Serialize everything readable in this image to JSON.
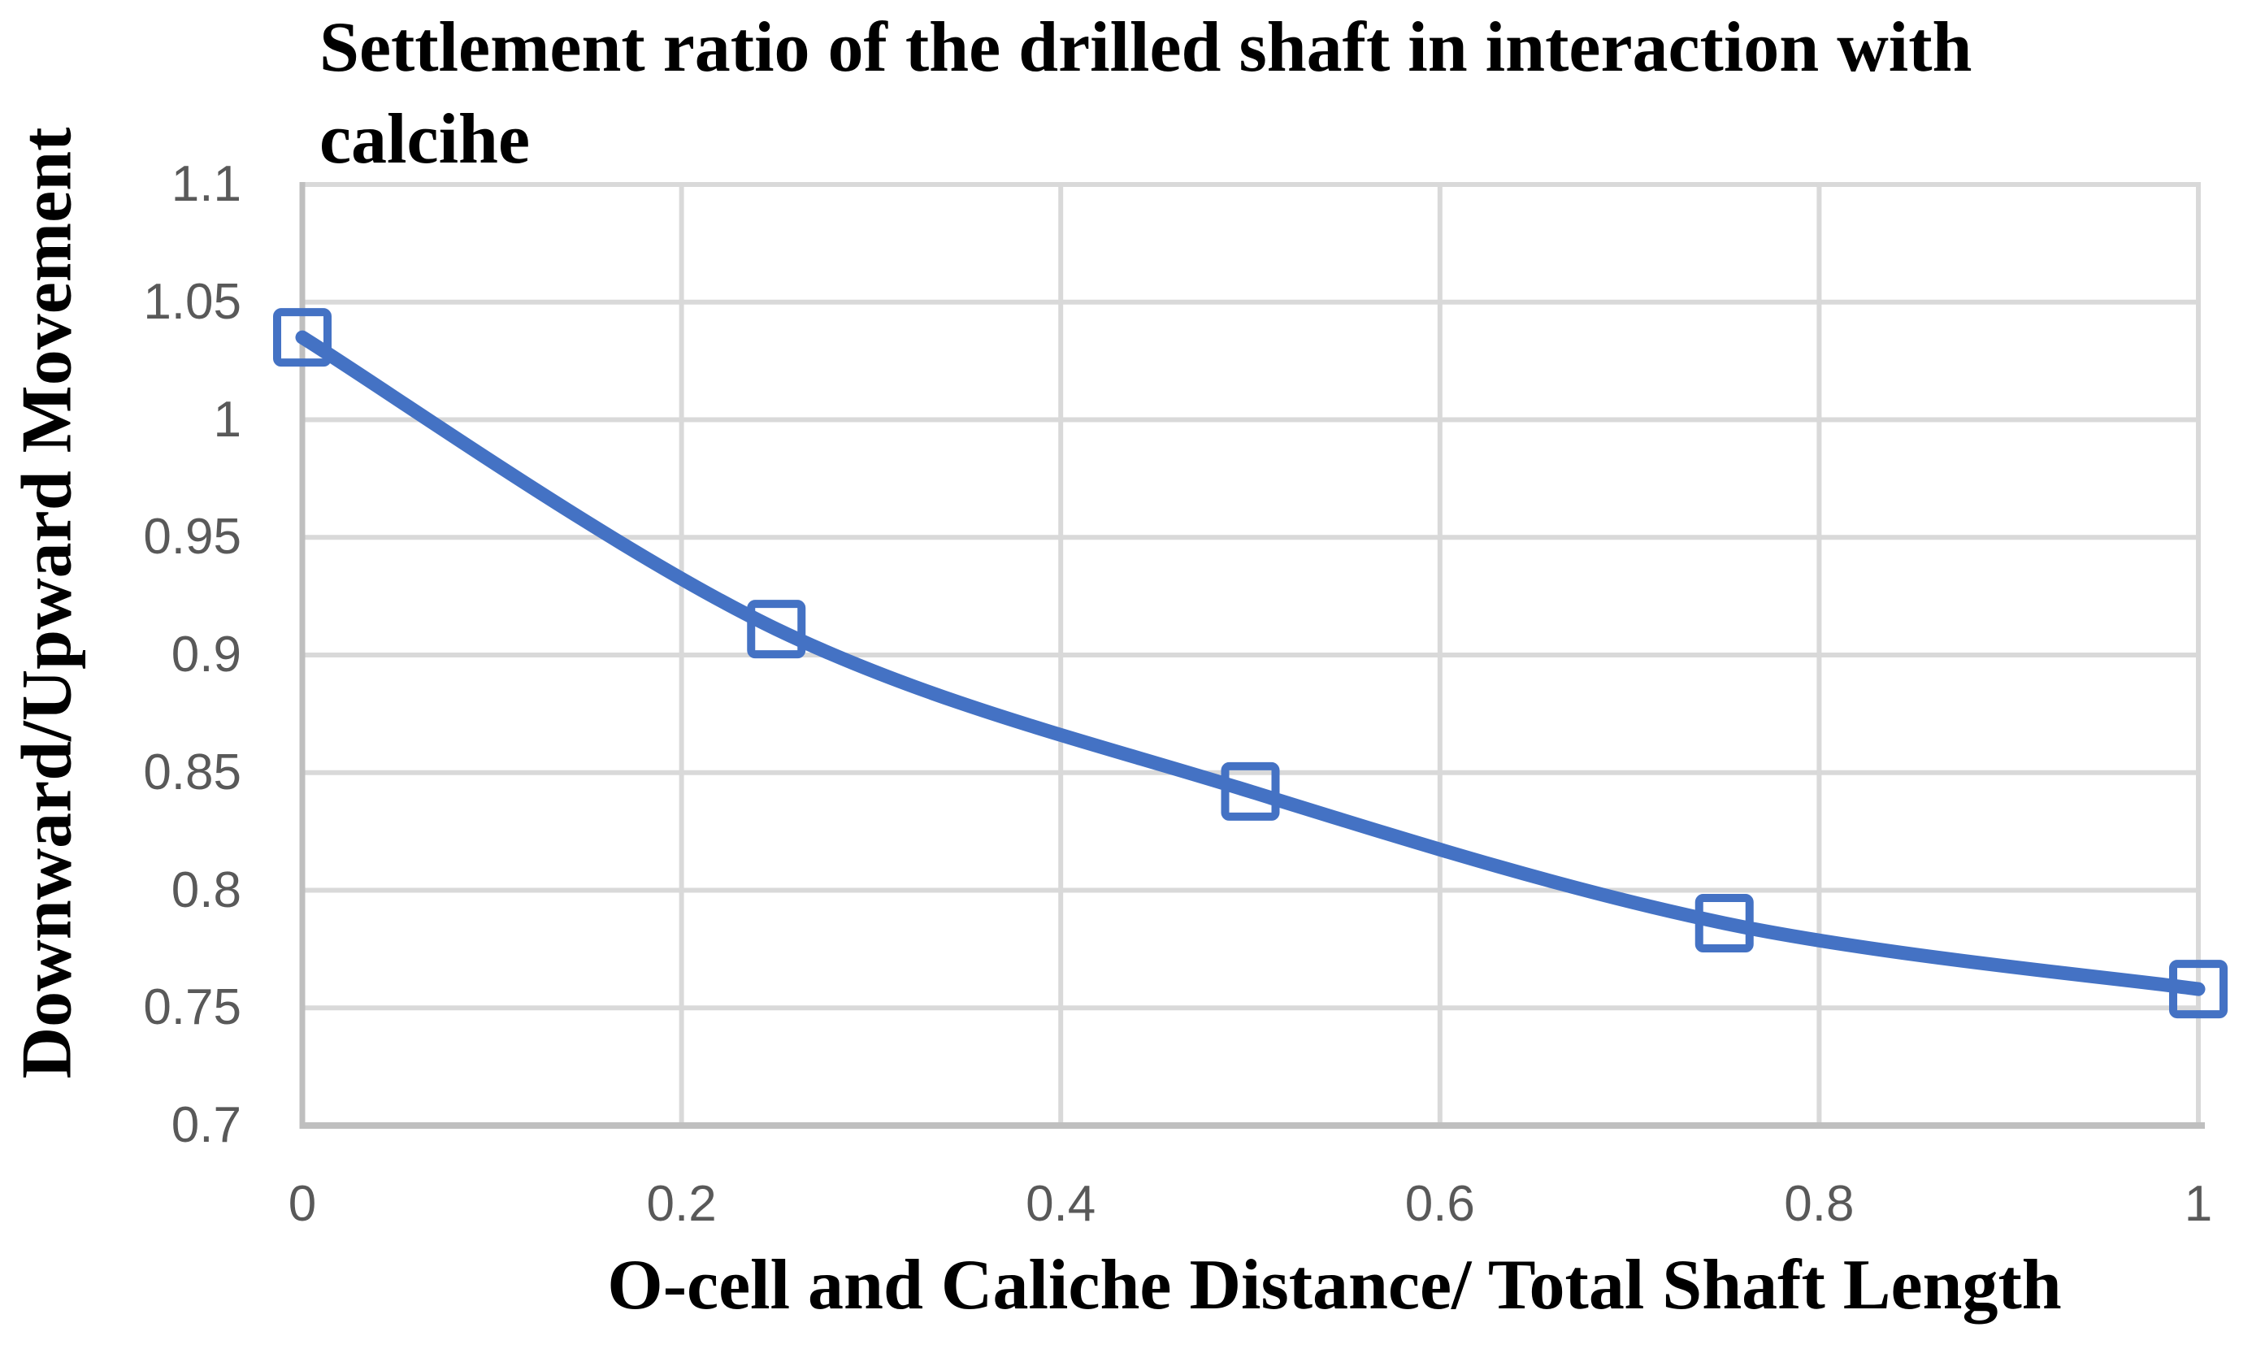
{
  "chart_data": {
    "type": "line",
    "title": "Settlement ratio of the drilled shaft in interaction with calcihe",
    "title_lines": [
      "Settlement ratio of the drilled shaft in interaction with",
      "calcihe"
    ],
    "xlabel": "O-cell and Caliche Distance/ Total Shaft Length",
    "ylabel": "Downward/Upward Movement",
    "series": [
      {
        "x": [
          0,
          0.25,
          0.5,
          0.75,
          1
        ],
        "y": [
          1.035,
          0.911,
          0.842,
          0.786,
          0.758
        ],
        "color": "#4472C4",
        "marker": "open-square",
        "smooth": true,
        "line_width": 17,
        "marker_size": 62,
        "marker_stroke": 10
      }
    ],
    "xlim": [
      0,
      1
    ],
    "ylim": [
      0.7,
      1.1
    ],
    "x_ticks": [
      "0",
      "0.2",
      "0.4",
      "0.6",
      "0.8",
      "1"
    ],
    "y_ticks": [
      "0.7",
      "0.75",
      "0.8",
      "0.85",
      "0.9",
      "0.95",
      "1",
      "1.05",
      "1.1"
    ],
    "grid": true,
    "legend": false,
    "colors": {
      "background": "#FFFFFF",
      "gridline": "#D9D9D9",
      "axis_line": "#BFBFBF",
      "tick_label": "#595959",
      "title_text": "#000000"
    }
  }
}
